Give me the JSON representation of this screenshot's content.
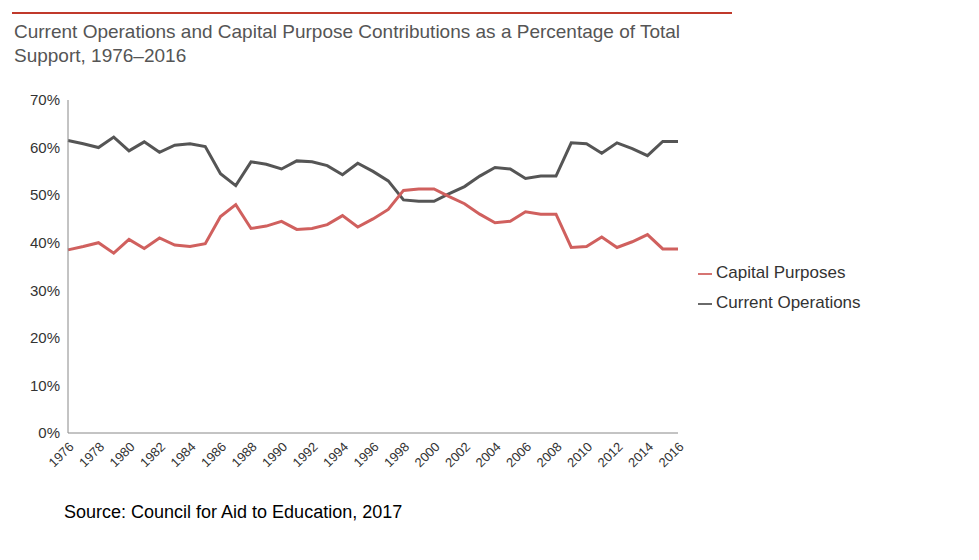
{
  "chart_data": {
    "type": "line",
    "title": "Current Operations and Capital Purpose Contributions as a Percentage of Total Support, 1976–2016",
    "source": "Source: Council for Aid to Education, 2017",
    "categories": [
      "1976",
      null,
      "1978",
      null,
      "1980",
      null,
      "1982",
      null,
      "1984",
      null,
      "1986",
      null,
      "1988",
      null,
      "1990",
      null,
      "1992",
      null,
      "1994",
      null,
      "1996",
      null,
      "1998",
      null,
      "2000",
      null,
      "2002",
      null,
      "2004",
      null,
      "2006",
      null,
      "2008",
      null,
      "2010",
      null,
      "2012",
      null,
      "2014",
      null,
      "2016"
    ],
    "series": [
      {
        "name": "Current Operations",
        "color": "#555555",
        "values": [
          61.5,
          60.8,
          60,
          62.2,
          59.3,
          61.2,
          59,
          60.5,
          60.8,
          60.2,
          54.5,
          52,
          57,
          56.5,
          55.5,
          57.2,
          57,
          56.2,
          54.3,
          56.7,
          55,
          53,
          49,
          48.7,
          48.7,
          50.3,
          51.8,
          54,
          55.8,
          55.5,
          53.5,
          54,
          54,
          61,
          60.8,
          58.8,
          61,
          59.8,
          58.3,
          61.3,
          61.3
        ]
      },
      {
        "name": "Capital Purposes",
        "color": "#d0605e",
        "values": [
          38.5,
          39.2,
          40,
          37.8,
          40.7,
          38.8,
          41,
          39.5,
          39.2,
          39.8,
          45.5,
          48,
          43,
          43.5,
          44.5,
          42.8,
          43,
          43.8,
          45.7,
          43.3,
          45,
          47,
          51,
          51.3,
          51.3,
          49.7,
          48.2,
          46,
          44.2,
          44.5,
          46.5,
          46,
          46,
          39,
          39.2,
          41.2,
          39,
          40.2,
          41.7,
          38.7,
          38.7
        ]
      }
    ],
    "ylim": [
      0,
      70
    ],
    "yticks": [
      {
        "value": 0,
        "label": "0%"
      },
      {
        "value": 10,
        "label": "10%"
      },
      {
        "value": 20,
        "label": "20%"
      },
      {
        "value": 30,
        "label": "30%"
      },
      {
        "value": 40,
        "label": "40%"
      },
      {
        "value": 50,
        "label": "50%"
      },
      {
        "value": 60,
        "label": "60%"
      },
      {
        "value": 70,
        "label": "70%"
      }
    ],
    "grid": false,
    "legend": "right"
  }
}
